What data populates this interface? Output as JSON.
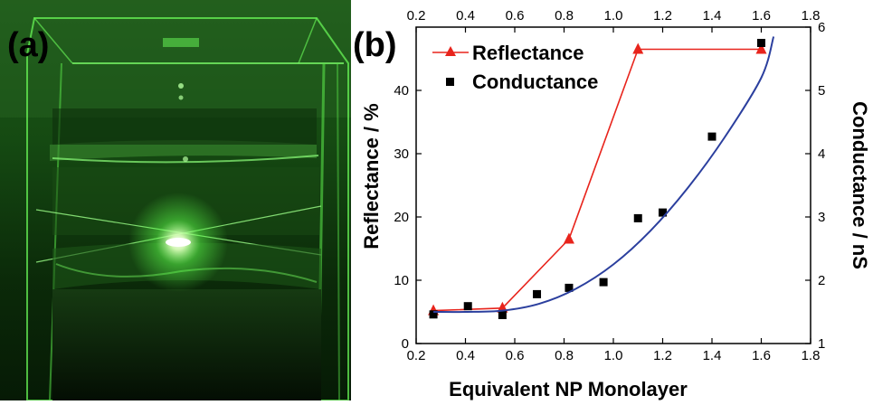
{
  "panels": {
    "photo_label": "(a)",
    "chart_label": "(b)"
  },
  "chart_data": {
    "type": "line",
    "x": [
      0.27,
      0.55,
      0.82,
      1.1,
      1.6
    ],
    "xlabel": "Equivalent NP Monolayer",
    "xlim": [
      0.2,
      1.8
    ],
    "xticks": [
      "0.2",
      "0.4",
      "0.6",
      "0.8",
      "1.0",
      "1.2",
      "1.4",
      "1.6",
      "1.8"
    ],
    "top_xticks": [
      "0.2",
      "0.4",
      "0.6",
      "0.8",
      "1.0",
      "1.2",
      "1.4",
      "1.6",
      "1.8"
    ],
    "ylabel": "Reflectance / %",
    "ylim": [
      0,
      50
    ],
    "yticks": [
      "0",
      "10",
      "20",
      "30",
      "40"
    ],
    "y2label": "Conductance  / nS",
    "y2lim": [
      1,
      6
    ],
    "y2ticks": [
      "1",
      "2",
      "3",
      "4",
      "5",
      "6"
    ],
    "legend_placement": "top-left",
    "grid": false,
    "series": [
      {
        "name": "Reflectance",
        "axis": "left",
        "style": "line+triangle",
        "color": "#e8241c",
        "x": [
          0.27,
          0.55,
          0.82,
          1.1,
          1.6
        ],
        "y": [
          5.2,
          5.6,
          16.5,
          46.5,
          46.5
        ]
      },
      {
        "name": "Conductance",
        "axis": "right",
        "style": "square-markers",
        "color": "#000000",
        "x": [
          0.27,
          0.41,
          0.55,
          0.69,
          0.82,
          0.96,
          1.1,
          1.2,
          1.4,
          1.6
        ],
        "y": [
          1.46,
          1.59,
          1.45,
          1.78,
          1.88,
          1.97,
          2.98,
          3.07,
          4.27,
          5.75
        ]
      },
      {
        "axis": "right",
        "style": "fit-curve",
        "color": "#2b3f9e",
        "x": [
          0.27,
          0.4,
          0.55,
          0.7,
          0.85,
          1.0,
          1.15,
          1.3,
          1.45,
          1.6,
          1.65
        ],
        "y": [
          1.5,
          1.5,
          1.52,
          1.63,
          1.87,
          2.25,
          2.78,
          3.45,
          4.25,
          5.2,
          5.85
        ]
      }
    ]
  },
  "colors": {
    "reflectance": "#e8241c",
    "conductance": "#000000",
    "fit_curve": "#2b3f9e",
    "photo_bg": "#0a2a08",
    "laser_green": "#5cff4a"
  }
}
